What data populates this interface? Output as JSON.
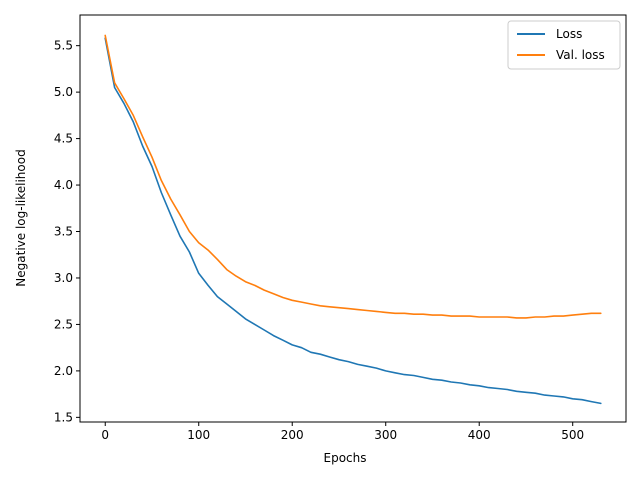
{
  "chart_data": {
    "type": "line",
    "xlabel": "Epochs",
    "ylabel": "Negative log-likelihood",
    "xlim": [
      -27,
      557
    ],
    "ylim": [
      1.45,
      5.83
    ],
    "xticks": [
      0,
      100,
      200,
      300,
      400,
      500
    ],
    "yticks": [
      1.5,
      2.0,
      2.5,
      3.0,
      3.5,
      4.0,
      4.5,
      5.0,
      5.5
    ],
    "ytick_labels": [
      "1.5",
      "2.0",
      "2.5",
      "3.0",
      "3.5",
      "4.0",
      "4.5",
      "5.0",
      "5.5"
    ],
    "grid": false,
    "legend_position": "top-right",
    "x": [
      0,
      10,
      20,
      30,
      40,
      50,
      60,
      70,
      80,
      90,
      100,
      110,
      120,
      130,
      140,
      150,
      160,
      170,
      180,
      190,
      200,
      210,
      220,
      230,
      240,
      250,
      260,
      270,
      280,
      290,
      300,
      310,
      320,
      330,
      340,
      350,
      360,
      370,
      380,
      390,
      400,
      410,
      420,
      430,
      440,
      450,
      460,
      470,
      480,
      490,
      500,
      510,
      520,
      530
    ],
    "series": [
      {
        "name": "Loss",
        "color": "#1f77b4",
        "values": [
          5.58,
          5.05,
          4.88,
          4.68,
          4.42,
          4.2,
          3.92,
          3.68,
          3.45,
          3.28,
          3.05,
          2.92,
          2.8,
          2.72,
          2.64,
          2.56,
          2.5,
          2.44,
          2.38,
          2.33,
          2.28,
          2.25,
          2.2,
          2.18,
          2.15,
          2.12,
          2.1,
          2.07,
          2.05,
          2.03,
          2.0,
          1.98,
          1.96,
          1.95,
          1.93,
          1.91,
          1.9,
          1.88,
          1.87,
          1.85,
          1.84,
          1.82,
          1.81,
          1.8,
          1.78,
          1.77,
          1.76,
          1.74,
          1.73,
          1.72,
          1.7,
          1.69,
          1.67,
          1.65
        ]
      },
      {
        "name": "Val. loss",
        "color": "#ff7f0e",
        "values": [
          5.61,
          5.1,
          4.93,
          4.75,
          4.52,
          4.3,
          4.05,
          3.85,
          3.68,
          3.5,
          3.38,
          3.3,
          3.2,
          3.09,
          3.02,
          2.96,
          2.92,
          2.87,
          2.83,
          2.79,
          2.76,
          2.74,
          2.72,
          2.7,
          2.69,
          2.68,
          2.67,
          2.66,
          2.65,
          2.64,
          2.63,
          2.62,
          2.62,
          2.61,
          2.61,
          2.6,
          2.6,
          2.59,
          2.59,
          2.59,
          2.58,
          2.58,
          2.58,
          2.58,
          2.57,
          2.57,
          2.58,
          2.58,
          2.59,
          2.59,
          2.6,
          2.61,
          2.62,
          2.62
        ]
      }
    ]
  }
}
